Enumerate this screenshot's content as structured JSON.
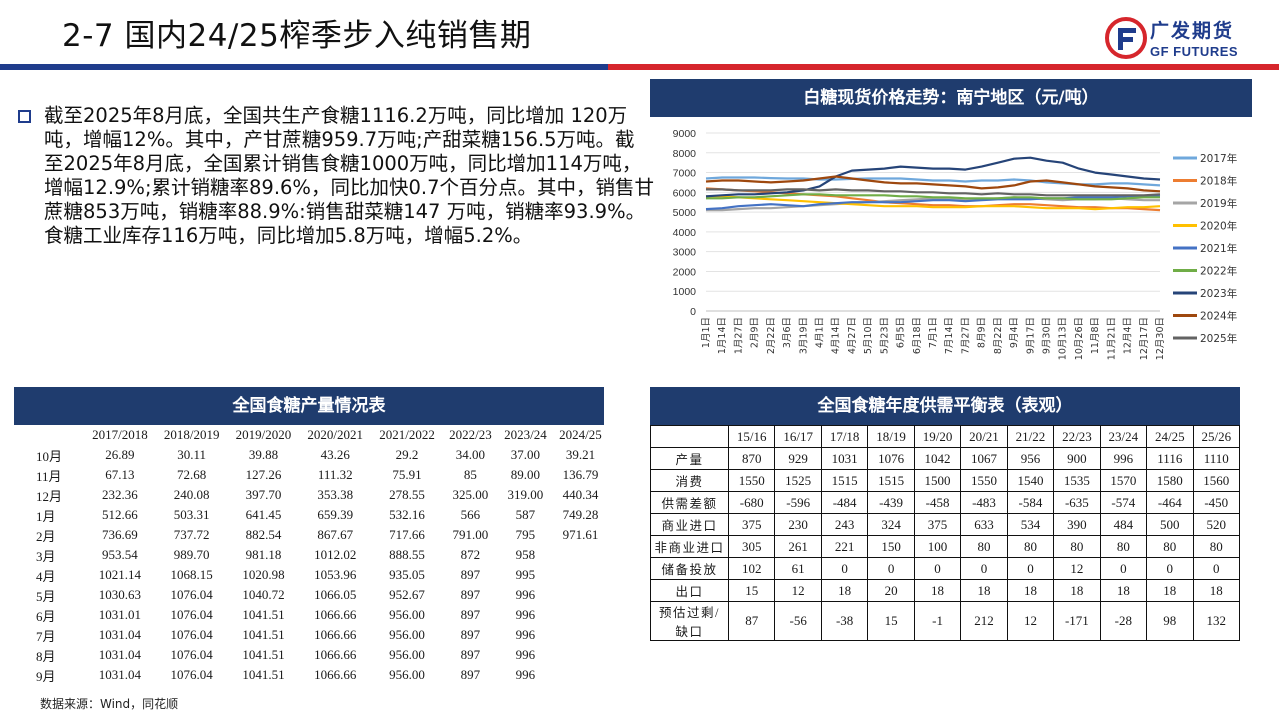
{
  "header": {
    "title": "2-7  国内24/25榨季步入纯销售期",
    "logo_cn": "广发期货",
    "logo_en": "GF FUTURES"
  },
  "bullet": {
    "text": "截至2025年8月底，全国共生产食糖1116.2万吨，同比增加 120万吨，增幅12%。其中，产甘蔗糖959.7万吨;产甜菜糖156.5万吨。截至2025年8月底，全国累计销售食糖1000万吨，同比增加114万吨，增幅12.9%;累计销糖率89.6%，同比加快0.7个百分点。其中，销售甘蔗糖853万吨，销糖率88.9%:销售甜菜糖147 万吨，销糖率93.9%。食糖工业库存116万吨，同比增加5.8万吨，增幅5.2%。"
  },
  "chart_data": {
    "type": "line",
    "title": "白糖现货价格走势：南宁地区（元/吨）",
    "ylim": [
      0,
      9000
    ],
    "yticks": [
      "0",
      "1000",
      "2000",
      "3000",
      "4000",
      "5000",
      "6000",
      "7000",
      "8000",
      "9000"
    ],
    "x_labels": [
      "1月1日",
      "1月14日",
      "1月27日",
      "2月9日",
      "2月22日",
      "3月6日",
      "3月19日",
      "4月1日",
      "4月14日",
      "4月27日",
      "5月10日",
      "5月23日",
      "6月5日",
      "6月18日",
      "7月1日",
      "7月14日",
      "7月27日",
      "8月9日",
      "8月22日",
      "9月4日",
      "9月17日",
      "9月30日",
      "10月13日",
      "10月26日",
      "11月8日",
      "11月21日",
      "12月4日",
      "12月17日",
      "12月30日"
    ],
    "series": [
      {
        "name": "2017年",
        "color": "#6fa8dc",
        "values": [
          6700,
          6750,
          6750,
          6750,
          6720,
          6700,
          6700,
          6650,
          6650,
          6680,
          6700,
          6700,
          6700,
          6650,
          6600,
          6600,
          6550,
          6600,
          6600,
          6650,
          6600,
          6500,
          6450,
          6400,
          6400,
          6450,
          6450,
          6400,
          6350
        ]
      },
      {
        "name": "2018年",
        "color": "#ed7d31",
        "values": [
          6200,
          6150,
          6100,
          6050,
          6000,
          5950,
          5900,
          5850,
          5800,
          5700,
          5600,
          5500,
          5450,
          5400,
          5350,
          5350,
          5300,
          5300,
          5350,
          5400,
          5400,
          5350,
          5300,
          5250,
          5250,
          5200,
          5200,
          5150,
          5100
        ]
      },
      {
        "name": "2019年",
        "color": "#a5a5a5",
        "values": [
          5100,
          5100,
          5150,
          5200,
          5200,
          5250,
          5300,
          5350,
          5400,
          5450,
          5500,
          5550,
          5600,
          5650,
          5700,
          5650,
          5600,
          5650,
          5700,
          5750,
          5700,
          5650,
          5600,
          5650,
          5650,
          5700,
          5650,
          5600,
          5600
        ]
      },
      {
        "name": "2020年",
        "color": "#ffc000",
        "values": [
          5800,
          5800,
          5750,
          5700,
          5650,
          5600,
          5550,
          5500,
          5450,
          5400,
          5350,
          5300,
          5300,
          5300,
          5250,
          5250,
          5250,
          5300,
          5300,
          5300,
          5250,
          5200,
          5200,
          5200,
          5150,
          5200,
          5250,
          5250,
          5300
        ]
      },
      {
        "name": "2021年",
        "color": "#4472c4",
        "values": [
          5150,
          5200,
          5300,
          5350,
          5400,
          5350,
          5300,
          5400,
          5450,
          5500,
          5500,
          5500,
          5500,
          5550,
          5600,
          5600,
          5550,
          5600,
          5650,
          5650,
          5650,
          5700,
          5700,
          5750,
          5750,
          5750,
          5800,
          5800,
          5800
        ]
      },
      {
        "name": "2022年",
        "color": "#70ad47",
        "values": [
          5700,
          5700,
          5750,
          5750,
          5800,
          5850,
          5900,
          5900,
          5850,
          5850,
          5850,
          5850,
          5800,
          5800,
          5750,
          5750,
          5700,
          5700,
          5700,
          5750,
          5750,
          5700,
          5700,
          5650,
          5650,
          5650,
          5700,
          5750,
          5750
        ]
      },
      {
        "name": "2023年",
        "color": "#264478",
        "values": [
          5800,
          5850,
          5900,
          5900,
          5950,
          6000,
          6100,
          6300,
          6800,
          7100,
          7150,
          7200,
          7300,
          7250,
          7200,
          7200,
          7150,
          7300,
          7500,
          7700,
          7750,
          7600,
          7500,
          7200,
          7000,
          6900,
          6800,
          6700,
          6650
        ]
      },
      {
        "name": "2024年",
        "color": "#9e480e",
        "values": [
          6550,
          6600,
          6600,
          6550,
          6500,
          6550,
          6600,
          6700,
          6800,
          6700,
          6600,
          6500,
          6450,
          6450,
          6400,
          6350,
          6300,
          6200,
          6250,
          6350,
          6550,
          6600,
          6500,
          6400,
          6300,
          6250,
          6200,
          6100,
          6050
        ]
      },
      {
        "name": "2025年",
        "color": "#636363",
        "values": [
          6150,
          6150,
          6100,
          6100,
          6100,
          6150,
          6150,
          6100,
          6150,
          6100,
          6100,
          6050,
          6050,
          6000,
          6000,
          5950,
          5950,
          5900,
          5950,
          5900,
          5900,
          5850,
          5850,
          5850,
          5850,
          5850,
          5850,
          5850,
          5900
        ]
      }
    ]
  },
  "production_table": {
    "title": "全国食糖产量情况表",
    "columns": [
      "",
      "2017/2018",
      "2018/2019",
      "2019/2020",
      "2020/2021",
      "2021/2022",
      "2022/23",
      "2023/24",
      "2024/25"
    ],
    "rows": [
      [
        "10月",
        "26.89",
        "30.11",
        "39.88",
        "43.26",
        "29.2",
        "34.00",
        "37.00",
        "39.21"
      ],
      [
        "11月",
        "67.13",
        "72.68",
        "127.26",
        "111.32",
        "75.91",
        "85",
        "89.00",
        "136.79"
      ],
      [
        "12月",
        "232.36",
        "240.08",
        "397.70",
        "353.38",
        "278.55",
        "325.00",
        "319.00",
        "440.34"
      ],
      [
        "1月",
        "512.66",
        "503.31",
        "641.45",
        "659.39",
        "532.16",
        "566",
        "587",
        "749.28"
      ],
      [
        "2月",
        "736.69",
        "737.72",
        "882.54",
        "867.67",
        "717.66",
        "791.00",
        "795",
        "971.61"
      ],
      [
        "3月",
        "953.54",
        "989.70",
        "981.18",
        "1012.02",
        "888.55",
        "872",
        "958",
        ""
      ],
      [
        "4月",
        "1021.14",
        "1068.15",
        "1020.98",
        "1053.96",
        "935.05",
        "897",
        "995",
        ""
      ],
      [
        "5月",
        "1030.63",
        "1076.04",
        "1040.72",
        "1066.05",
        "952.67",
        "897",
        "996",
        ""
      ],
      [
        "6月",
        "1031.01",
        "1076.04",
        "1041.51",
        "1066.66",
        "956.00",
        "897",
        "996",
        ""
      ],
      [
        "7月",
        "1031.04",
        "1076.04",
        "1041.51",
        "1066.66",
        "956.00",
        "897",
        "996",
        ""
      ],
      [
        "8月",
        "1031.04",
        "1076.04",
        "1041.51",
        "1066.66",
        "956.00",
        "897",
        "996",
        ""
      ],
      [
        "9月",
        "1031.04",
        "1076.04",
        "1041.51",
        "1066.66",
        "956.00",
        "897",
        "996",
        ""
      ]
    ]
  },
  "balance_table": {
    "title": "全国食糖年度供需平衡表（表观）",
    "columns": [
      "",
      "15/16",
      "16/17",
      "17/18",
      "18/19",
      "19/20",
      "20/21",
      "21/22",
      "22/23",
      "23/24",
      "24/25",
      "25/26"
    ],
    "rows": [
      [
        "产量",
        "870",
        "929",
        "1031",
        "1076",
        "1042",
        "1067",
        "956",
        "900",
        "996",
        "1116",
        "1110"
      ],
      [
        "消费",
        "1550",
        "1525",
        "1515",
        "1515",
        "1500",
        "1550",
        "1540",
        "1535",
        "1570",
        "1580",
        "1560"
      ],
      [
        "供需差额",
        "-680",
        "-596",
        "-484",
        "-439",
        "-458",
        "-483",
        "-584",
        "-635",
        "-574",
        "-464",
        "-450"
      ],
      [
        "商业进口",
        "375",
        "230",
        "243",
        "324",
        "375",
        "633",
        "534",
        "390",
        "484",
        "500",
        "520"
      ],
      [
        "非商业进口",
        "305",
        "261",
        "221",
        "150",
        "100",
        "80",
        "80",
        "80",
        "80",
        "80",
        "80"
      ],
      [
        "储备投放",
        "102",
        "61",
        "0",
        "0",
        "0",
        "0",
        "0",
        "12",
        "0",
        "0",
        "0"
      ],
      [
        "出口",
        "15",
        "12",
        "18",
        "20",
        "18",
        "18",
        "18",
        "18",
        "18",
        "18",
        "18"
      ],
      [
        "预估过剩/缺口",
        "87",
        "-56",
        "-38",
        "15",
        "-1",
        "212",
        "12",
        "-171",
        "-28",
        "98",
        "132"
      ]
    ]
  },
  "source": "数据来源：Wind，同花顺"
}
